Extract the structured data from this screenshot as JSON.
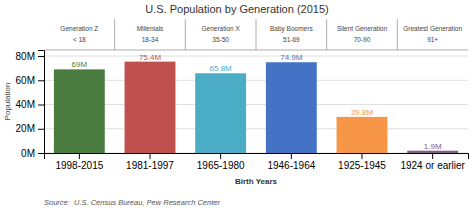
{
  "chart_data": {
    "type": "bar",
    "title": "U.S. Population by Generation (2015)",
    "categories": [
      "1998-2015",
      "1981-1997",
      "1965-1980",
      "1946-1964",
      "1925-1945",
      "1924 or earlier"
    ],
    "generation_names": [
      "Generation Z",
      "Millenials",
      "Generation X",
      "Baby Boomers",
      "Silent Generation",
      "Greatest Generation"
    ],
    "generation_ages": [
      "< 18",
      "18-34",
      "35-50",
      "51-69",
      "70-90",
      "91+"
    ],
    "values": [
      69,
      75.4,
      65.8,
      74.9,
      29.8,
      1.9
    ],
    "value_labels": [
      "69M",
      "75.4M",
      "65.8M",
      "74.9M",
      "29.8M",
      "1.9M"
    ],
    "colors": [
      "#4a7c3f",
      "#c0504d",
      "#4bacc6",
      "#4472c4",
      "#f79646",
      "#7f6084"
    ],
    "xlabel": "Birth Years",
    "ylabel": "Population",
    "ylim": [
      0,
      85
    ],
    "yticks": [
      {
        "value": 0,
        "label": "0M"
      },
      {
        "value": 20,
        "label": "20M"
      },
      {
        "value": 40,
        "label": "40M"
      },
      {
        "value": 60,
        "label": "60M"
      },
      {
        "value": 80,
        "label": "80M"
      }
    ],
    "grid": true,
    "data_labels": true,
    "source": "Source:  U.S. Census Bureau, Pew Research Center"
  }
}
